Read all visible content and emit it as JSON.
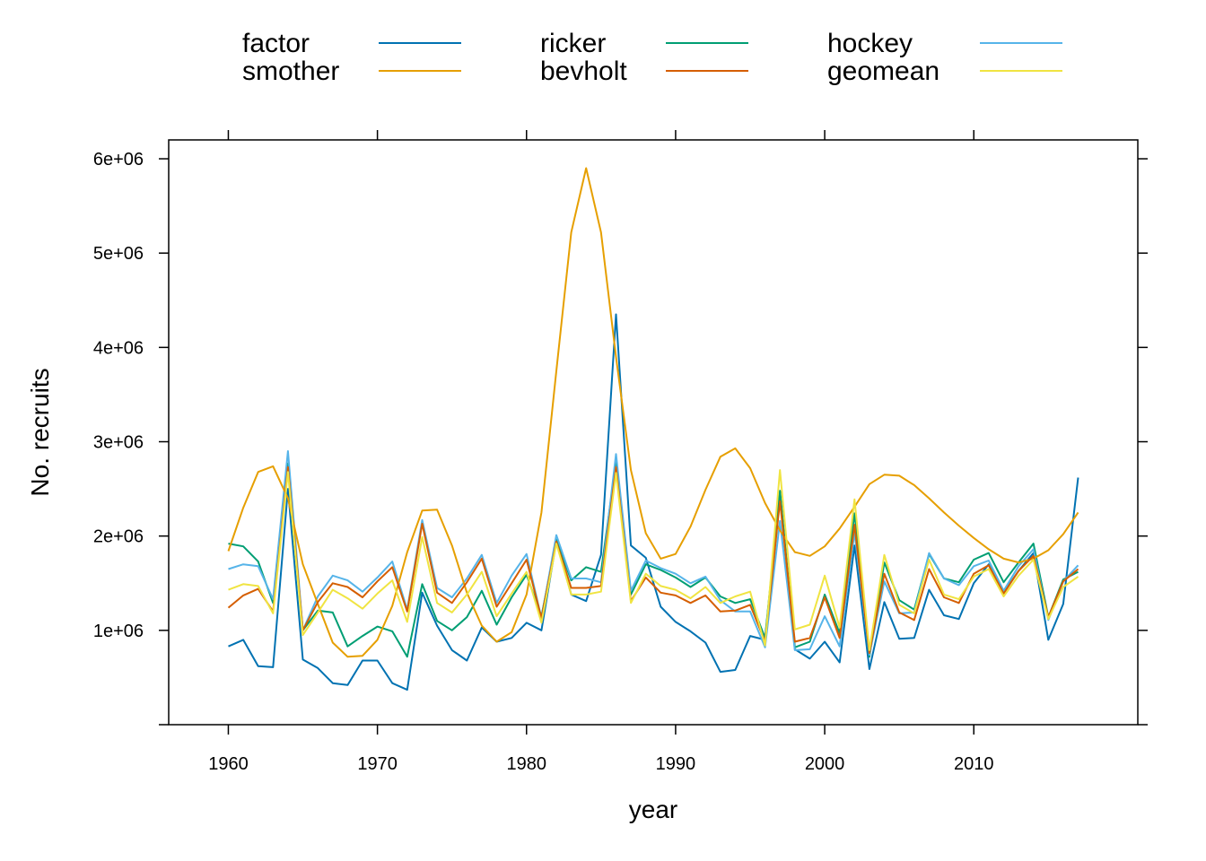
{
  "chart_data": {
    "type": "line",
    "xlabel": "year",
    "ylabel": "No. recruits",
    "xlim": [
      1956,
      2021
    ],
    "ylim": [
      0,
      6200000
    ],
    "x_ticks": [
      1960,
      1970,
      1980,
      1990,
      2000,
      2010
    ],
    "x_tick_labels": [
      "1960",
      "1970",
      "1980",
      "1990",
      "2000",
      "2010"
    ],
    "y_ticks": [
      0,
      1000000,
      2000000,
      3000000,
      4000000,
      5000000,
      6000000
    ],
    "y_tick_labels": [
      "",
      "1e+06",
      "2e+06",
      "3e+06",
      "4e+06",
      "5e+06",
      "6e+06"
    ],
    "legend_position": "top",
    "years": [
      1960,
      1961,
      1962,
      1963,
      1964,
      1965,
      1966,
      1967,
      1968,
      1969,
      1970,
      1971,
      1972,
      1973,
      1974,
      1975,
      1976,
      1977,
      1978,
      1979,
      1980,
      1981,
      1982,
      1983,
      1984,
      1985,
      1986,
      1987,
      1988,
      1989,
      1990,
      1991,
      1992,
      1993,
      1994,
      1995,
      1996,
      1997,
      1998,
      1999,
      2000,
      2001,
      2002,
      2003,
      2004,
      2005,
      2006,
      2007,
      2008,
      2009,
      2010,
      2011,
      2012,
      2013,
      2014,
      2015,
      2016,
      2017
    ],
    "series": [
      {
        "name": "factor",
        "color": "#0072B2",
        "values": [
          830000,
          900000,
          620000,
          610000,
          2500000,
          690000,
          600000,
          440000,
          420000,
          680000,
          680000,
          440000,
          370000,
          1400000,
          1050000,
          790000,
          680000,
          1030000,
          880000,
          920000,
          1080000,
          1000000,
          1950000,
          1380000,
          1310000,
          1800000,
          4350000,
          1900000,
          1770000,
          1250000,
          1090000,
          990000,
          870000,
          560000,
          580000,
          940000,
          900000,
          2480000,
          800000,
          700000,
          880000,
          660000,
          1900000,
          590000,
          1300000,
          910000,
          920000,
          1430000,
          1160000,
          1120000,
          1500000,
          1700000,
          1400000,
          1630000,
          1820000,
          900000,
          1280000,
          2620000
        ]
      },
      {
        "name": "ricker",
        "color": "#009E73",
        "values": [
          1920000,
          1890000,
          1730000,
          1290000,
          2770000,
          1000000,
          1210000,
          1190000,
          830000,
          940000,
          1040000,
          990000,
          720000,
          1490000,
          1100000,
          1000000,
          1140000,
          1420000,
          1060000,
          1350000,
          1590000,
          1150000,
          1960000,
          1530000,
          1670000,
          1620000,
          2780000,
          1380000,
          1700000,
          1640000,
          1560000,
          1460000,
          1560000,
          1360000,
          1290000,
          1330000,
          920000,
          2480000,
          820000,
          880000,
          1380000,
          970000,
          2240000,
          720000,
          1720000,
          1320000,
          1220000,
          1810000,
          1550000,
          1510000,
          1750000,
          1820000,
          1510000,
          1720000,
          1920000,
          1140000,
          1540000,
          1620000
        ]
      },
      {
        "name": "hockey",
        "color": "#56B4E9",
        "values": [
          1650000,
          1700000,
          1680000,
          1330000,
          2900000,
          1000000,
          1360000,
          1580000,
          1530000,
          1410000,
          1560000,
          1730000,
          1220000,
          2170000,
          1450000,
          1350000,
          1550000,
          1800000,
          1290000,
          1580000,
          1810000,
          1130000,
          2010000,
          1550000,
          1550000,
          1510000,
          2870000,
          1420000,
          1740000,
          1660000,
          1600000,
          1500000,
          1570000,
          1320000,
          1200000,
          1200000,
          820000,
          2160000,
          790000,
          800000,
          1150000,
          830000,
          2040000,
          740000,
          1520000,
          1180000,
          1190000,
          1820000,
          1550000,
          1480000,
          1680000,
          1740000,
          1420000,
          1680000,
          1860000,
          1110000,
          1520000,
          1690000
        ]
      },
      {
        "name": "smother",
        "color": "#E69F00",
        "values": [
          1840000,
          2300000,
          2680000,
          2740000,
          2400000,
          1700000,
          1280000,
          870000,
          720000,
          730000,
          900000,
          1260000,
          1830000,
          2270000,
          2280000,
          1900000,
          1400000,
          1050000,
          880000,
          980000,
          1380000,
          2250000,
          3750000,
          5220000,
          5900000,
          5220000,
          3900000,
          2700000,
          2030000,
          1760000,
          1810000,
          2100000,
          2490000,
          2840000,
          2930000,
          2720000,
          2350000,
          2060000,
          1830000,
          1790000,
          1890000,
          2080000,
          2310000,
          2550000,
          2650000,
          2640000,
          2540000,
          2400000,
          2250000,
          2110000,
          1980000,
          1860000,
          1760000,
          1720000,
          1760000,
          1850000,
          2020000,
          2250000
        ]
      },
      {
        "name": "bevholt",
        "color": "#D55E00",
        "values": [
          1240000,
          1370000,
          1440000,
          1200000,
          2730000,
          1000000,
          1300000,
          1500000,
          1460000,
          1350000,
          1520000,
          1670000,
          1200000,
          2130000,
          1400000,
          1290000,
          1510000,
          1760000,
          1250000,
          1500000,
          1750000,
          1130000,
          1940000,
          1450000,
          1450000,
          1470000,
          2730000,
          1310000,
          1560000,
          1400000,
          1370000,
          1290000,
          1370000,
          1200000,
          1210000,
          1270000,
          880000,
          2370000,
          880000,
          920000,
          1350000,
          920000,
          2120000,
          760000,
          1600000,
          1190000,
          1110000,
          1650000,
          1350000,
          1290000,
          1600000,
          1690000,
          1390000,
          1630000,
          1790000,
          1140000,
          1520000,
          1650000
        ]
      },
      {
        "name": "geomean",
        "color": "#F0E442",
        "values": [
          1430000,
          1490000,
          1470000,
          1180000,
          2680000,
          950000,
          1190000,
          1430000,
          1340000,
          1230000,
          1390000,
          1530000,
          1090000,
          1990000,
          1290000,
          1190000,
          1380000,
          1620000,
          1150000,
          1390000,
          1620000,
          1080000,
          1920000,
          1380000,
          1380000,
          1410000,
          2670000,
          1290000,
          1600000,
          1470000,
          1430000,
          1340000,
          1460000,
          1290000,
          1360000,
          1410000,
          840000,
          2700000,
          1010000,
          1060000,
          1580000,
          1030000,
          2390000,
          790000,
          1800000,
          1270000,
          1180000,
          1750000,
          1380000,
          1330000,
          1570000,
          1650000,
          1360000,
          1580000,
          1750000,
          1120000,
          1460000,
          1570000
        ]
      }
    ]
  }
}
